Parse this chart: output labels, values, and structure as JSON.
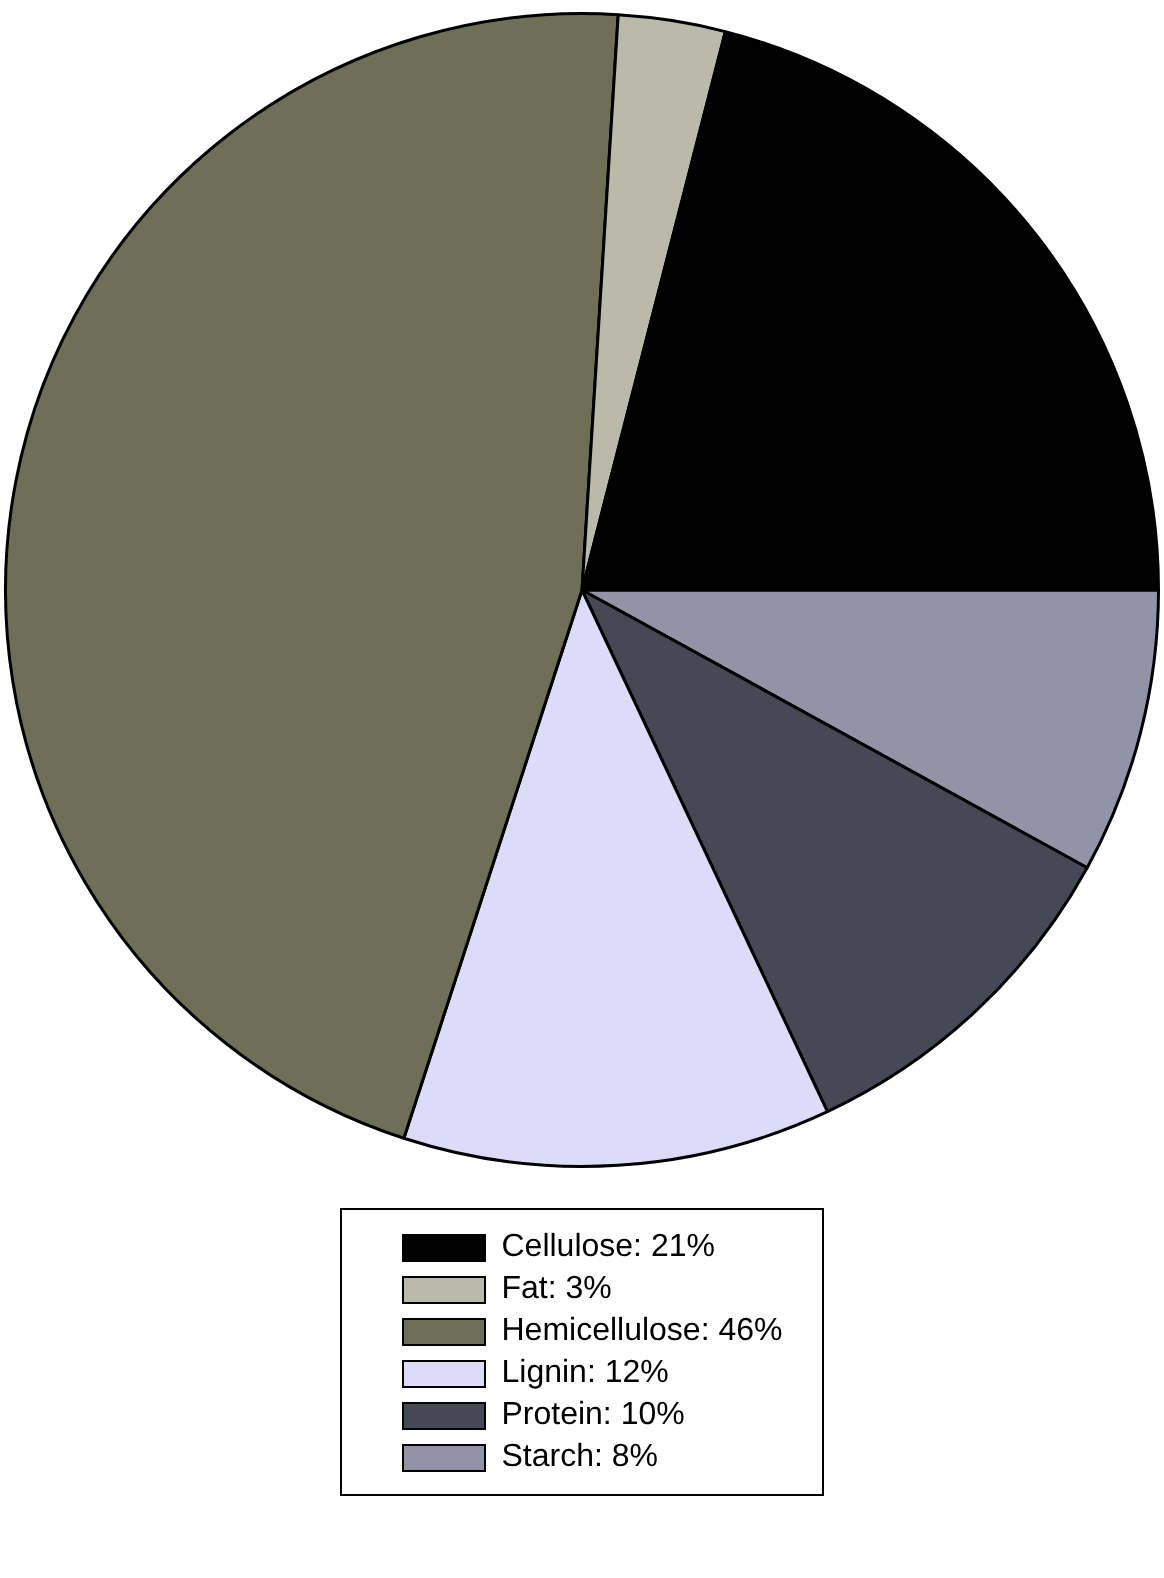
{
  "chart_data": {
    "type": "pie",
    "categories": [
      "Cellulose",
      "Fat",
      "Hemicellulose",
      "Lignin",
      "Protein",
      "Starch"
    ],
    "values": [
      21,
      3,
      46,
      12,
      10,
      8
    ],
    "value_labels": [
      "21%",
      "3%",
      "46%",
      "12%",
      "10%",
      "8%"
    ],
    "colors": [
      "#000000",
      "#b9baa9",
      "#6e6f57",
      "#dcdcf8",
      "#474856",
      "#9393a8"
    ],
    "legend": "bottom"
  }
}
